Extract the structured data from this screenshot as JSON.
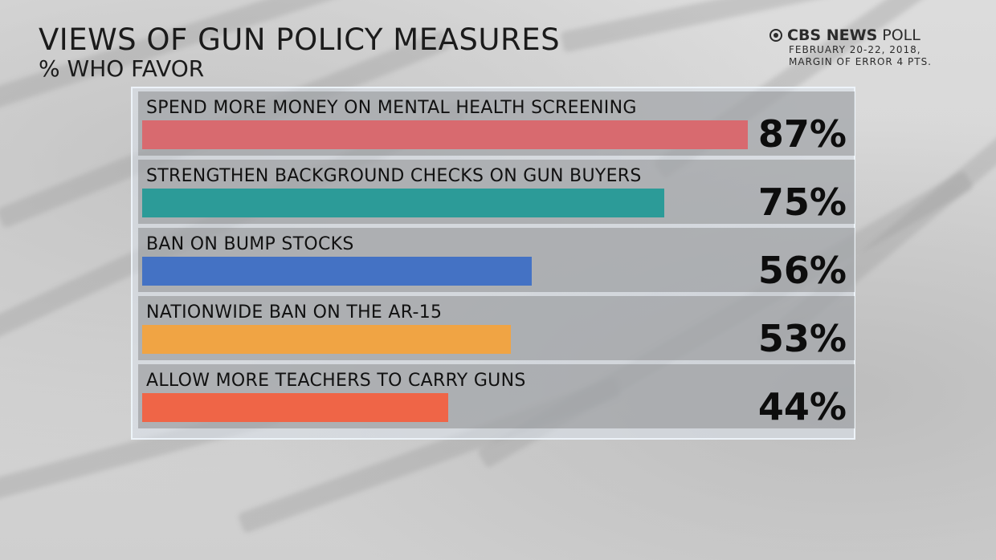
{
  "header": {
    "title": "VIEWS OF GUN POLICY MEASURES",
    "subtitle": "% WHO FAVOR"
  },
  "brand": {
    "name_bold": "CBS NEWS",
    "name_light": "POLL",
    "date_line1": "FEBRUARY 20-22, 2018,",
    "date_line2": "MARGIN OF ERROR 4 PTS."
  },
  "chart_data": {
    "type": "bar",
    "orientation": "horizontal",
    "categories": [
      "SPEND MORE MONEY ON MENTAL HEALTH SCREENING",
      "STRENGTHEN BACKGROUND CHECKS ON GUN BUYERS",
      "BAN ON BUMP STOCKS",
      "NATIONWIDE BAN ON THE AR-15",
      "ALLOW MORE TEACHERS TO CARRY GUNS"
    ],
    "values": [
      87,
      75,
      56,
      53,
      44
    ],
    "value_labels": [
      "87%",
      "75%",
      "56%",
      "53%",
      "44%"
    ],
    "colors": [
      "#d86a6f",
      "#2c9b98",
      "#4472c4",
      "#f0a444",
      "#ef6547"
    ],
    "xlim": [
      0,
      100
    ],
    "title": "VIEWS OF GUN POLICY MEASURES",
    "subtitle": "% WHO FAVOR",
    "grid": false,
    "legend": "none"
  }
}
